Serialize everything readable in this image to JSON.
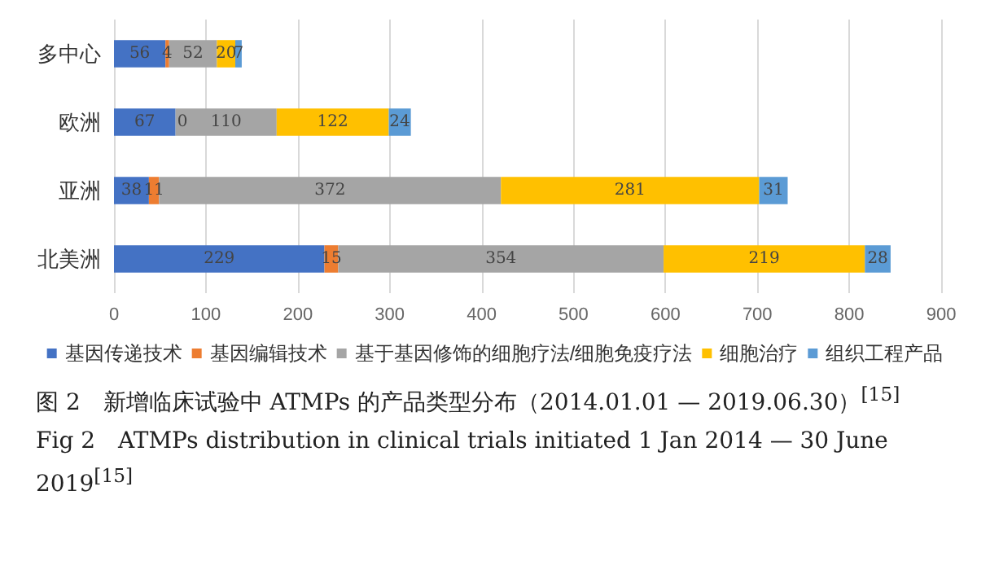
{
  "chart_data": {
    "type": "bar",
    "orientation": "horizontal",
    "stacked": true,
    "categories": [
      "多中心",
      "欧洲",
      "亚洲",
      "北美洲"
    ],
    "series": [
      {
        "name": "基因传递技术",
        "color": "#4472c4",
        "values": [
          56,
          67,
          38,
          229
        ],
        "value_labels": [
          "56",
          "67",
          "38",
          "229"
        ]
      },
      {
        "name": "基因编辑技术",
        "color": "#ed7d31",
        "values": [
          4,
          0,
          11,
          15
        ],
        "value_labels": [
          "4",
          null,
          "11",
          "15"
        ]
      },
      {
        "name": "基于基因修饰的细胞疗法/细胞免疫疗法",
        "color": "#a5a5a5",
        "values": [
          52,
          110,
          372,
          354
        ],
        "value_labels": [
          "52",
          "110",
          "372",
          "354"
        ]
      },
      {
        "name": "细胞治疗",
        "color": "#ffc000",
        "values": [
          20,
          122,
          281,
          219
        ],
        "value_labels": [
          "20",
          "122",
          "281",
          "219"
        ]
      },
      {
        "name": "组织工程产品",
        "color": "#5b9bd5",
        "values": [
          7,
          24,
          31,
          28
        ],
        "value_labels": [
          "7",
          "24",
          "31",
          "28"
        ]
      }
    ],
    "xlim": [
      0,
      900
    ],
    "xticks": [
      0,
      100,
      200,
      300,
      400,
      500,
      600,
      700,
      800,
      900
    ],
    "grid": "x",
    "legend": "bottom",
    "annotations": [
      {
        "text": "0",
        "x": 67,
        "y": "欧洲"
      },
      "图 2　新增临床试验中 ATMPs 的产品类型分布（2014.01.01 — 2019.06.30）$^{[15]}$",
      "Fig 2　ATMPs distribution in clinical trials initiated 1 Jan 2014 — 30 June 2019$^{[15]}$"
    ]
  }
}
